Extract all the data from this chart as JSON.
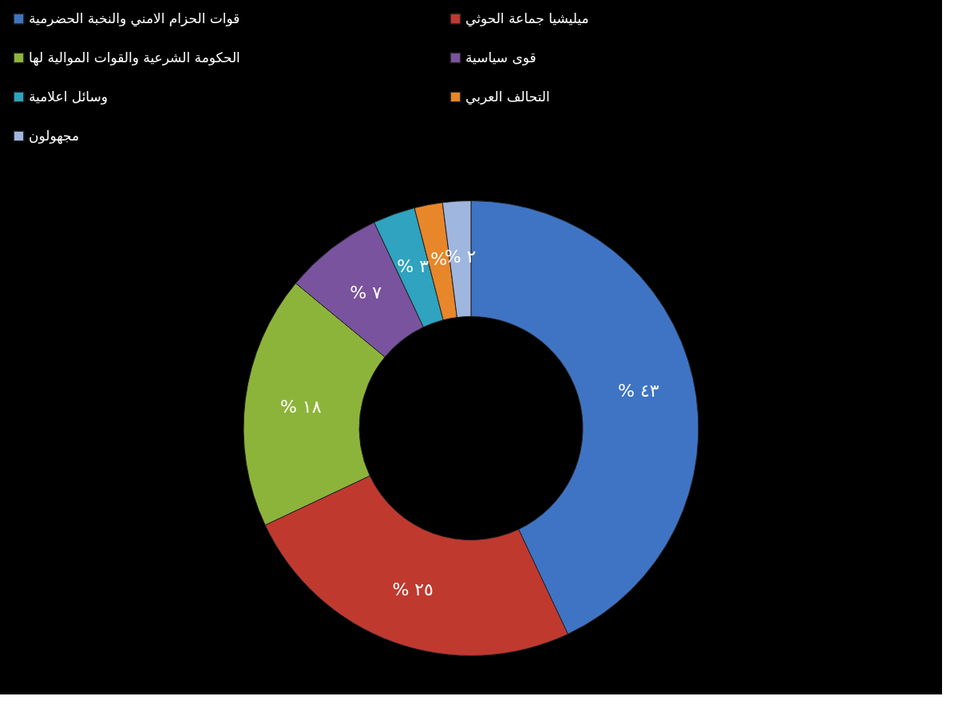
{
  "chart_data": {
    "type": "donut",
    "categories": [
      "قوات الحزام الامني والنخبة الحضرمية",
      "ميليشيا جماعة الحوثي",
      "الحكومة الشرعية والقوات الموالية لها",
      "قوى سياسية",
      "وسائل اعلامية",
      "التحالف العربي",
      "مجهولون"
    ],
    "values": [
      43,
      25,
      18,
      7,
      3,
      2,
      2
    ],
    "colors": [
      "#3f74c4",
      "#c0392f",
      "#8db43a",
      "#7a539e",
      "#2fa3bf",
      "#e8862a",
      "#9fb6de"
    ],
    "value_labels": [
      "% ٤٣",
      "% ٢٥",
      "% ١٨",
      "% ٧",
      "% ٣",
      "%",
      "% ٢"
    ],
    "legend": "top"
  }
}
